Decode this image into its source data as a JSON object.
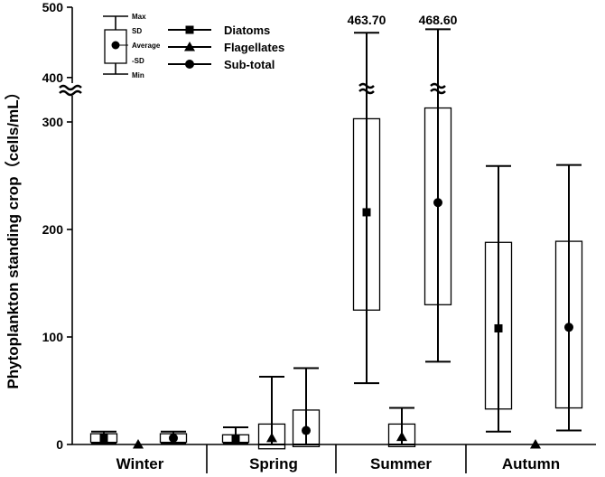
{
  "chart_data": {
    "type": "boxplot",
    "ylabel": "Phytoplankton standing crop（cells/mL）",
    "yticks": [
      "0",
      "100",
      "200",
      "300",
      "400",
      "500"
    ],
    "y_axis_break": [
      325,
      375
    ],
    "categories": [
      "Winter",
      "Spring",
      "Summer",
      "Autumn"
    ],
    "legend": {
      "series": [
        {
          "name": "Diatoms",
          "marker": "square"
        },
        {
          "name": "Flagellates",
          "marker": "triangle"
        },
        {
          "name": "Sub-total",
          "marker": "circle"
        }
      ],
      "key_labels": {
        "max": "Max",
        "sd": "SD",
        "average": "Average",
        "minus_sd": "-SD",
        "min": "Min"
      }
    },
    "boxes": [
      {
        "season": "Winter",
        "series": "Diatoms",
        "min": 1,
        "sd_low": 2,
        "mean": 6,
        "sd_high": 10,
        "max": 12
      },
      {
        "season": "Winter",
        "series": "Flagellates",
        "min": 0,
        "sd_low": 0,
        "mean": 0,
        "sd_high": 0,
        "max": 0
      },
      {
        "season": "Winter",
        "series": "Sub-total",
        "min": 1,
        "sd_low": 2,
        "mean": 6,
        "sd_high": 10,
        "max": 12
      },
      {
        "season": "Spring",
        "series": "Diatoms",
        "min": 1,
        "sd_low": 2,
        "mean": 5,
        "sd_high": 9,
        "max": 16
      },
      {
        "season": "Spring",
        "series": "Flagellates",
        "min": 0,
        "sd_low": -4,
        "mean": 6,
        "sd_high": 19,
        "max": 63
      },
      {
        "season": "Spring",
        "series": "Sub-total",
        "min": 0,
        "sd_low": -2,
        "mean": 13,
        "sd_high": 32,
        "max": 71
      },
      {
        "season": "Summer",
        "series": "Diatoms",
        "min": 57,
        "sd_low": 125,
        "mean": 216,
        "sd_high": 303,
        "max": 463.7,
        "max_label": "463.70"
      },
      {
        "season": "Summer",
        "series": "Flagellates",
        "min": 0,
        "sd_low": -2,
        "mean": 7,
        "sd_high": 19,
        "max": 34
      },
      {
        "season": "Summer",
        "series": "Sub-total",
        "min": 77,
        "sd_low": 130,
        "mean": 225,
        "sd_high": 313,
        "max": 468.6,
        "max_label": "468.60"
      },
      {
        "season": "Autumn",
        "series": "Diatoms",
        "min": 12,
        "sd_low": 33,
        "mean": 108,
        "sd_high": 188,
        "max": 259
      },
      {
        "season": "Autumn",
        "series": "Flagellates",
        "min": 0,
        "sd_low": 0,
        "mean": 0,
        "sd_high": 0,
        "max": 0
      },
      {
        "season": "Autumn",
        "series": "Sub-total",
        "min": 13,
        "sd_low": 34,
        "mean": 109,
        "sd_high": 189,
        "max": 260
      }
    ]
  }
}
